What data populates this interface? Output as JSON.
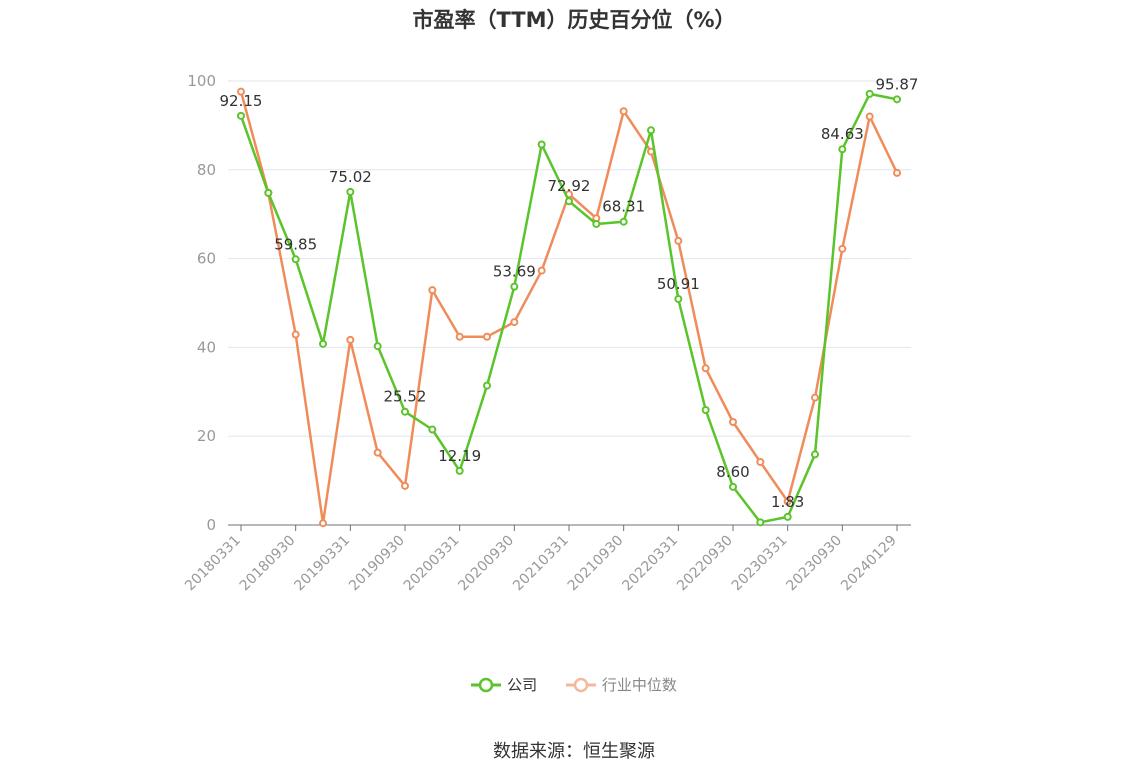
{
  "title": "市盈率（TTM）历史百分位（%）",
  "source": "数据来源：恒生聚源",
  "colors": {
    "company": "#5ac42a",
    "industry": "#f08c5a",
    "axis": "#6e7079",
    "grid": "#e0e6f1"
  },
  "chart_data": {
    "type": "line",
    "title": "市盈率（TTM）历史百分位（%）",
    "xlabel": "",
    "ylabel": "",
    "ylim": [
      0,
      100
    ],
    "yticks": [
      "0",
      "20",
      "40",
      "60",
      "80",
      "100"
    ],
    "grid": true,
    "legend_position": "bottom-center",
    "x": [
      "20180331",
      "20180630",
      "20180930",
      "20181231",
      "20190331",
      "20190630",
      "20190930",
      "20191231",
      "20200331",
      "20200630",
      "20200930",
      "20201231",
      "20210331",
      "20210630",
      "20210930",
      "20211231",
      "20220331",
      "20220630",
      "20220930",
      "20221231",
      "20230331",
      "20230630",
      "20230930",
      "20231231",
      "20240129"
    ],
    "xtick_labels": [
      "20180331",
      "20180930",
      "20190331",
      "20190930",
      "20200331",
      "20200930",
      "20210331",
      "20210930",
      "20220331",
      "20220930",
      "20230331",
      "20230930",
      "20240129"
    ],
    "series": [
      {
        "name": "公司",
        "values": [
          92.15,
          74.8,
          59.85,
          40.8,
          75.02,
          40.3,
          25.52,
          21.5,
          12.19,
          31.4,
          53.69,
          85.7,
          72.92,
          67.8,
          68.31,
          88.9,
          50.91,
          25.9,
          8.6,
          0.6,
          1.83,
          15.9,
          84.63,
          97.1,
          95.87
        ],
        "labels": [
          "92.15",
          "",
          "59.85",
          "",
          "75.02",
          "",
          "25.52",
          "",
          "12.19",
          "",
          "53.69",
          "",
          "72.92",
          "",
          "68.31",
          "",
          "50.91",
          "",
          "8.60",
          "",
          "1.83",
          "",
          "84.63",
          "",
          "95.87"
        ]
      },
      {
        "name": "行业中位数",
        "values": [
          97.6,
          74.8,
          42.9,
          0.4,
          41.7,
          16.3,
          8.8,
          52.9,
          42.4,
          42.4,
          45.7,
          57.3,
          74.5,
          69.1,
          93.2,
          84.1,
          64.0,
          35.3,
          23.2,
          14.2,
          5.3,
          28.7,
          62.2,
          92.0,
          79.3
        ]
      }
    ]
  }
}
